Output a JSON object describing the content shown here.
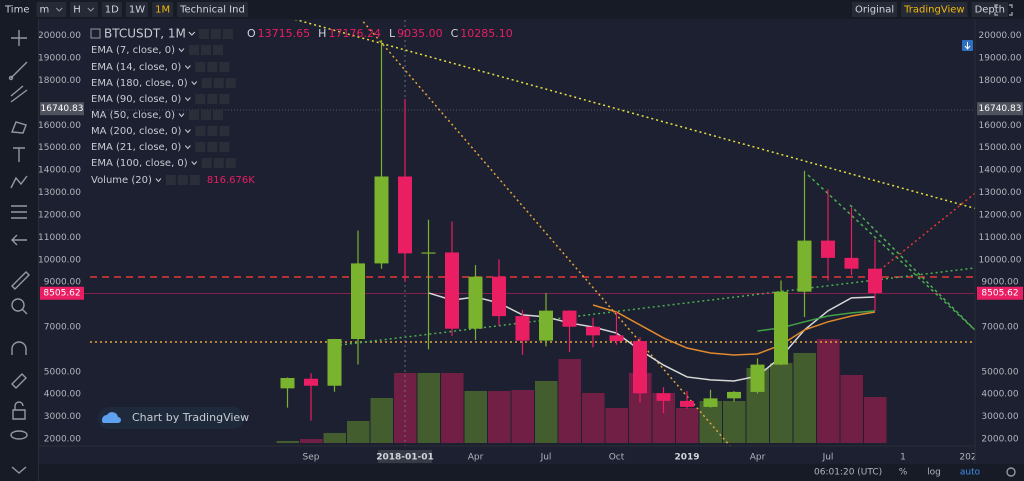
{
  "toolbar": {
    "left": [
      "Time",
      "m",
      "H",
      "1D",
      "1W",
      "1M",
      "Technical Ind"
    ],
    "right": [
      "Original",
      "TradingView",
      "Depth"
    ]
  },
  "header": {
    "symbol": "BTCUSDT, 1M",
    "ohlc": [
      {
        "key": "O",
        "value": "13715.65"
      },
      {
        "key": "H",
        "value": "17176.24"
      },
      {
        "key": "L",
        "value": "9035.00"
      },
      {
        "key": "C",
        "value": "10285.10"
      }
    ],
    "volume_study": "Volume (20)",
    "volume_value": "816.676K"
  },
  "watermark": "Chart by TradingView",
  "status": {
    "time": "06:01:20 (UTC)",
    "buttons": [
      "%",
      "log",
      "auto"
    ]
  },
  "chart_data": {
    "type": "candlestick",
    "categories": [
      null,
      "Sep",
      null,
      null,
      null,
      "2018-01-01",
      null,
      null,
      "Apr",
      null,
      null,
      "Jul",
      null,
      null,
      "Oct",
      null,
      null,
      "2019",
      null,
      null,
      "Apr",
      null,
      null,
      "Jul",
      null,
      null
    ],
    "axis_extra": [
      "1",
      "202"
    ],
    "open": [
      4261,
      4690,
      4378,
      6463,
      9837,
      13716,
      10285,
      10326,
      6923,
      9246,
      7485,
      6391,
      7730,
      7011,
      6626,
      6371,
      4041,
      3702,
      3434,
      3815,
      4103,
      5321,
      8575,
      10855,
      10085,
      9600
    ],
    "high": [
      4745,
      4939,
      6470,
      11300,
      19798,
      17176,
      11786,
      11710,
      9765,
      10020,
      7760,
      8507,
      7750,
      7410,
      7680,
      6545,
      4313,
      4140,
      4198,
      4140,
      5600,
      9075,
      13970,
      13146,
      12325,
      10905
    ],
    "low": [
      3400,
      2817,
      4110,
      5325,
      9600,
      9035,
      6000,
      6600,
      6426,
      7051,
      5755,
      6130,
      5880,
      6100,
      6209,
      3652,
      3156,
      3349,
      3400,
      3670,
      4030,
      5300,
      7444,
      9071,
      9320,
      7710
    ],
    "close": [
      4724,
      4378,
      6463,
      9838,
      13716,
      10285,
      10326,
      6923,
      9246,
      7485,
      6391,
      7730,
      7011,
      6626,
      6371,
      4041,
      3703,
      3434,
      3814,
      4103,
      5321,
      8575,
      10855,
      10085,
      9600,
      8505.62
    ],
    "volume": [
      36,
      71,
      178,
      391,
      799,
      1243,
      1243,
      1243,
      923,
      923,
      941,
      1101,
      1491,
      888,
      621,
      1243,
      888,
      621,
      746,
      746,
      1331,
      1420,
      1598,
      1846,
      1207,
      816.676
    ],
    "up_color": "#7ab32e",
    "down_color": "#e91e63",
    "series": [
      {
        "name": "EMA (7, close, 0)",
        "color": "#d8d8d8",
        "values": [
          null,
          null,
          null,
          null,
          null,
          null,
          8520,
          8200,
          8340,
          8070,
          7540,
          7450,
          7180,
          7000,
          6730,
          5970,
          5300,
          4770,
          4640,
          4590,
          4810,
          5660,
          6870,
          7720,
          8300,
          8340
        ]
      },
      {
        "name": "EMA (14, close, 0)",
        "color": "#e08a2c",
        "values": [
          null,
          null,
          null,
          null,
          null,
          null,
          null,
          null,
          null,
          null,
          null,
          null,
          null,
          7980,
          7670,
          7090,
          6510,
          6060,
          5840,
          5750,
          5800,
          6200,
          6870,
          7230,
          7490,
          7670
        ]
      },
      {
        "name": "EMA (180, close, 0)"
      },
      {
        "name": "EMA (90, close, 0)"
      },
      {
        "name": "MA (50, close, 0)"
      },
      {
        "name": "MA (200, close, 0)"
      },
      {
        "name": "EMA (21, close, 0)",
        "color": "#43a047",
        "values": [
          null,
          null,
          null,
          null,
          null,
          null,
          null,
          null,
          null,
          null,
          null,
          null,
          null,
          null,
          null,
          null,
          null,
          null,
          null,
          null,
          6820,
          6960,
          7230,
          7490,
          7630,
          7720
        ]
      },
      {
        "name": "EMA (100, close, 0)"
      }
    ],
    "ylim": [
      1800,
      20700
    ],
    "yticks": [
      {
        "value": 20000,
        "label": "20000.00"
      },
      {
        "value": 19000,
        "label": "19000.00"
      },
      {
        "value": 18000,
        "label": "18000.00"
      },
      {
        "value": 16000,
        "label": "16000.00"
      },
      {
        "value": 15000,
        "label": "15000.00"
      },
      {
        "value": 14000,
        "label": "14000.00"
      },
      {
        "value": 13000,
        "label": "13000.00"
      },
      {
        "value": 12000,
        "label": "12000.00"
      },
      {
        "value": 11000,
        "label": "11000.00"
      },
      {
        "value": 10000,
        "label": "10000.00"
      },
      {
        "value": 9000,
        "label": "9000.00"
      },
      {
        "value": 7000,
        "label": "7000.00"
      },
      {
        "value": 5000,
        "label": "5000.00"
      },
      {
        "value": 4000,
        "label": "4000.00"
      },
      {
        "value": 3000,
        "label": "3000.00"
      },
      {
        "value": 2000,
        "label": "2000.00"
      }
    ],
    "price_marks": [
      16740.83,
      8505.62
    ],
    "grid": true
  }
}
